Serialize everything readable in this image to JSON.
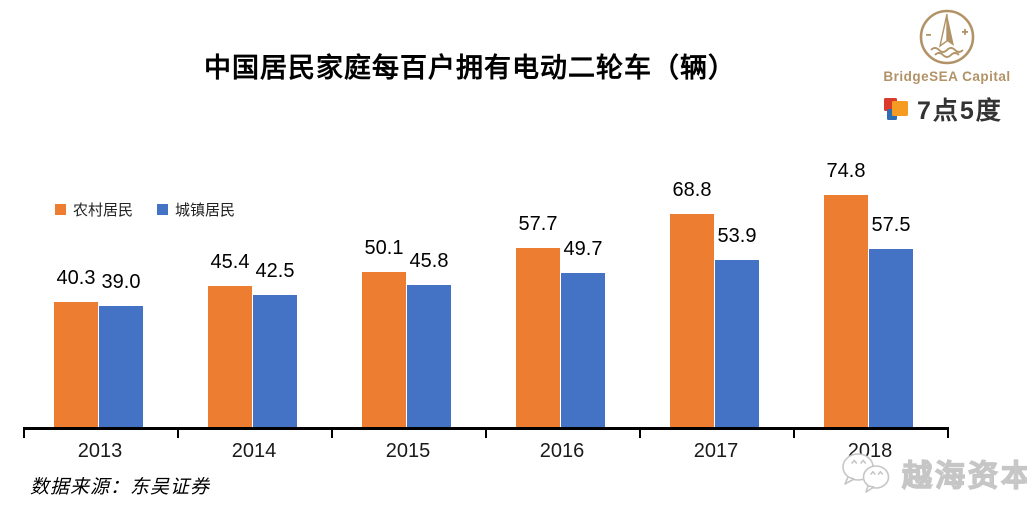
{
  "title": "中国居民家庭每百户拥有电动二轮车（辆）",
  "brand": {
    "bridgesea_name": "BridgeSEA Capital",
    "seven_five_degrees": "7点5度",
    "gold_color": "#B29368",
    "logo_square_colors": {
      "red": "#D93A2B",
      "orange": "#F59B22",
      "blue": "#2E6DB4"
    }
  },
  "source_note": "数据来源：东吴证券",
  "watermark": {
    "text": "越海资本",
    "color": "#c6c6c6"
  },
  "chart_data": {
    "type": "bar",
    "title": "中国居民家庭每百户拥有电动二轮车（辆）",
    "categories": [
      "2013",
      "2014",
      "2015",
      "2016",
      "2017",
      "2018"
    ],
    "series": [
      {
        "name": "农村居民",
        "color": "#ED7D31",
        "values": [
          40.3,
          45.4,
          50.1,
          57.7,
          68.8,
          74.8
        ]
      },
      {
        "name": "城镇居民",
        "color": "#4472C4",
        "values": [
          39.0,
          42.5,
          45.8,
          49.7,
          53.9,
          57.5
        ]
      }
    ],
    "xlabel": "",
    "ylabel": "",
    "ylim": [
      0,
      80
    ],
    "grid": false,
    "y_axis_visible": false,
    "legend_position": "upper-left",
    "value_labels": true,
    "value_label_format": "0.0"
  }
}
